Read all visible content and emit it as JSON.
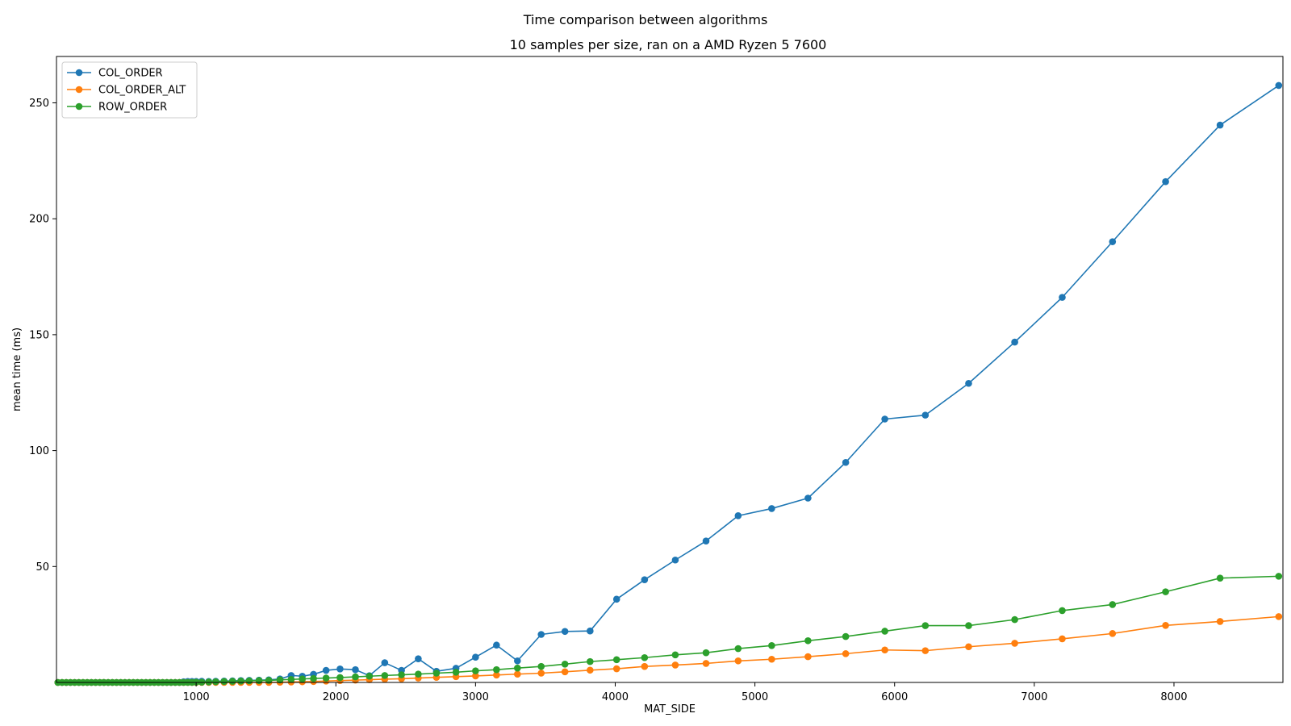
{
  "figure": {
    "suptitle": "Time comparison between algorithms"
  },
  "colors": {
    "COL_ORDER": "#1f77b4",
    "COL_ORDER_ALT": "#ff7f0e",
    "ROW_ORDER": "#2ca02c"
  },
  "chart_data": {
    "type": "line",
    "title": "10 samples per size, ran on a AMD Ryzen 5 7600",
    "xlabel": "MAT_SIDE",
    "ylabel": "mean time (ms)",
    "xlim": [
      0,
      8780
    ],
    "ylim": [
      0,
      270
    ],
    "xticks": [
      1000,
      2000,
      3000,
      4000,
      5000,
      6000,
      7000,
      8000
    ],
    "yticks": [
      50,
      100,
      150,
      200,
      250
    ],
    "legend_loc": "upper left",
    "grid": false,
    "x": [
      10,
      40,
      70,
      100,
      130,
      160,
      190,
      220,
      250,
      280,
      310,
      340,
      370,
      400,
      430,
      460,
      490,
      520,
      550,
      580,
      610,
      640,
      670,
      700,
      730,
      760,
      790,
      820,
      850,
      880,
      910,
      940,
      970,
      1000,
      1040,
      1090,
      1140,
      1200,
      1260,
      1320,
      1380,
      1450,
      1520,
      1600,
      1680,
      1760,
      1840,
      1930,
      2030,
      2140,
      2240,
      2350,
      2470,
      2590,
      2720,
      2860,
      3000,
      3150,
      3300,
      3470,
      3640,
      3820,
      4010,
      4210,
      4430,
      4650,
      4880,
      5120,
      5380,
      5650,
      5930,
      6220,
      6530,
      6860,
      7200,
      7560,
      7940,
      8330,
      8750
    ],
    "series": [
      {
        "name": "COL_ORDER",
        "values": [
          0,
          0,
          0,
          0,
          0,
          0,
          0,
          0,
          0,
          0,
          0,
          0,
          0,
          0,
          0,
          0,
          0,
          0,
          0,
          0,
          0,
          0,
          0,
          0,
          0,
          0,
          0,
          0,
          0,
          0,
          0.3,
          0.4,
          0.4,
          0.4,
          0.5,
          0.4,
          0.5,
          0.6,
          0.7,
          0.8,
          0.9,
          1.0,
          1.1,
          1.5,
          3.0,
          2.7,
          3.5,
          5.2,
          5.8,
          5.5,
          2.9,
          8.5,
          5.2,
          10.2,
          4.8,
          6.1,
          10.9,
          16.1,
          9.3,
          20.7,
          22.0,
          22.2,
          35.9,
          44.3,
          52.8,
          61.0,
          71.9,
          75.0,
          79.5,
          94.9,
          113.6,
          115.3,
          129.0,
          146.8,
          166.1,
          190.1,
          216.0,
          240.4,
          257.5
        ]
      },
      {
        "name": "COL_ORDER_ALT",
        "values": [
          0,
          0,
          0,
          0,
          0,
          0,
          0,
          0,
          0,
          0,
          0,
          0,
          0,
          0,
          0,
          0,
          0,
          0,
          0,
          0,
          0,
          0,
          0,
          0,
          0,
          0,
          0,
          0,
          0,
          0,
          0,
          0,
          0,
          0,
          0,
          0,
          0,
          0,
          0,
          0,
          0,
          0,
          0,
          0.1,
          0.2,
          0.3,
          0.4,
          0.6,
          0.8,
          1.0,
          1.2,
          1.4,
          1.6,
          1.9,
          2.2,
          2.5,
          2.8,
          3.2,
          3.6,
          4.0,
          4.6,
          5.3,
          5.9,
          6.9,
          7.5,
          8.2,
          9.3,
          10.0,
          11.1,
          12.4,
          14.0,
          13.7,
          15.4,
          16.9,
          18.8,
          21.1,
          24.6,
          26.3,
          28.4
        ]
      },
      {
        "name": "ROW_ORDER",
        "values": [
          0,
          0,
          0,
          0,
          0,
          0,
          0,
          0,
          0,
          0,
          0,
          0,
          0,
          0,
          0,
          0,
          0,
          0,
          0,
          0,
          0,
          0,
          0,
          0,
          0,
          0,
          0,
          0,
          0,
          0,
          0,
          0,
          0,
          0.1,
          0.1,
          0.2,
          0.3,
          0.4,
          0.5,
          0.6,
          0.7,
          0.8,
          0.9,
          1.1,
          1.3,
          1.5,
          1.7,
          1.9,
          2.1,
          2.4,
          2.7,
          3.0,
          3.3,
          3.6,
          4.0,
          4.4,
          5.0,
          5.5,
          6.2,
          6.9,
          7.9,
          9.0,
          9.8,
          10.7,
          11.9,
          12.8,
          14.6,
          15.9,
          18.0,
          19.8,
          22.1,
          24.5,
          24.5,
          27.1,
          31.0,
          33.6,
          39.1,
          45.0,
          45.8
        ]
      }
    ]
  }
}
